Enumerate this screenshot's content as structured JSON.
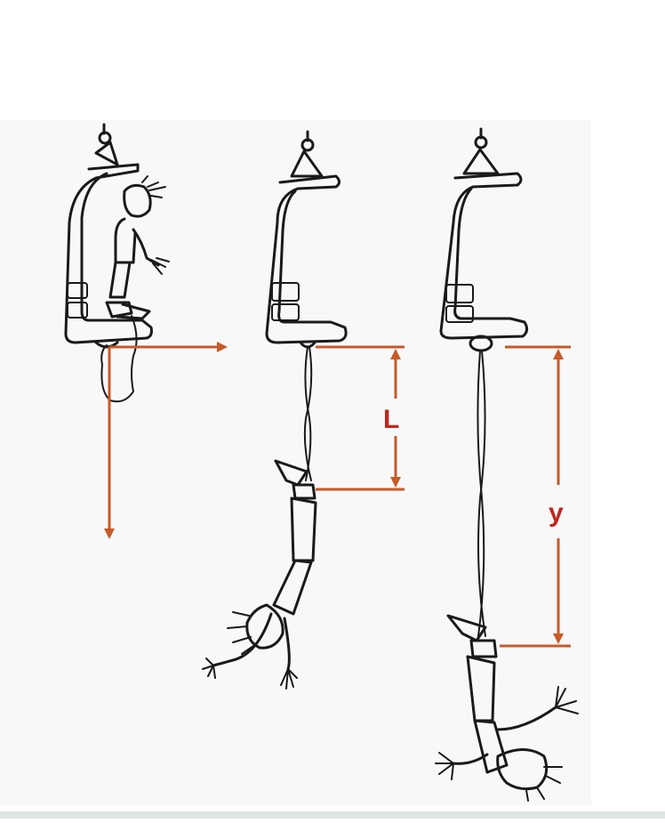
{
  "diagram": {
    "labels": {
      "rope_length": "L",
      "extension": "y"
    },
    "colors": {
      "arrows": "#c85a28",
      "labels": "#c0261c",
      "ink": "#1a1a1a",
      "background": "#f8f8f8"
    }
  }
}
